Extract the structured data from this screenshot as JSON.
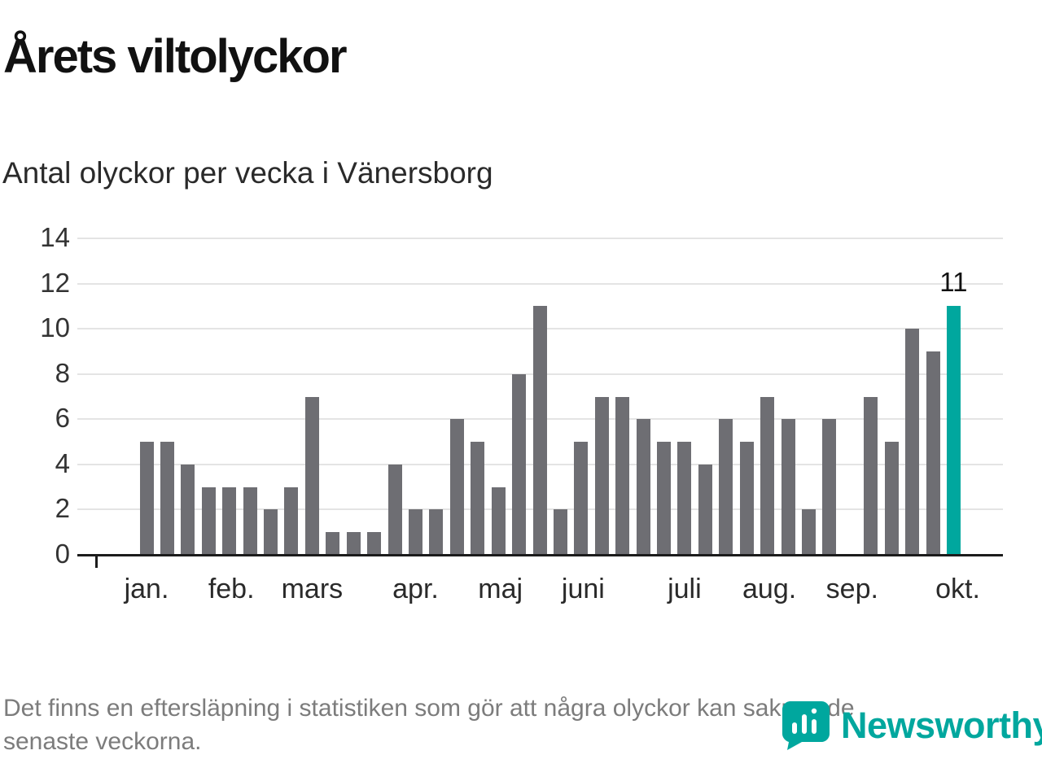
{
  "header": {
    "title": "Årets viltolyckor",
    "subtitle": "Antal olyckor per vecka i Vänersborg"
  },
  "chart_data": {
    "type": "bar",
    "title": "Årets viltolyckor",
    "subtitle": "Antal olyckor per vecka i Vänersborg",
    "xlabel": "",
    "ylabel": "",
    "ylim": [
      0,
      14
    ],
    "yticks": [
      0,
      2,
      4,
      6,
      8,
      10,
      12,
      14
    ],
    "grid": true,
    "values": [
      5,
      5,
      4,
      3,
      3,
      3,
      2,
      3,
      7,
      1,
      1,
      1,
      4,
      2,
      2,
      6,
      5,
      3,
      8,
      11,
      2,
      5,
      7,
      7,
      6,
      5,
      5,
      4,
      6,
      5,
      7,
      6,
      2,
      6,
      0,
      7,
      5,
      10,
      9,
      11
    ],
    "highlight_index": 39,
    "highlight_label": "11",
    "months": [
      {
        "label": "jan.",
        "week": 0
      },
      {
        "label": "feb.",
        "week": 4.1
      },
      {
        "label": "mars",
        "week": 8
      },
      {
        "label": "apr.",
        "week": 13
      },
      {
        "label": "maj",
        "week": 17.1
      },
      {
        "label": "juni",
        "week": 21.1
      },
      {
        "label": "juli",
        "week": 26
      },
      {
        "label": "aug.",
        "week": 30.1
      },
      {
        "label": "sep.",
        "week": 34.1
      },
      {
        "label": "okt.",
        "week": 39.2
      }
    ],
    "bar_color": "#6e6e73",
    "highlight_color": "#00a79e"
  },
  "footer": {
    "note_line1": "Det finns en eftersläpning i statistiken som gör att några olyckor kan saknas de",
    "note_line2": "senaste veckorna.",
    "brand": "Newsworthy",
    "brand_color": "#00a79e"
  }
}
